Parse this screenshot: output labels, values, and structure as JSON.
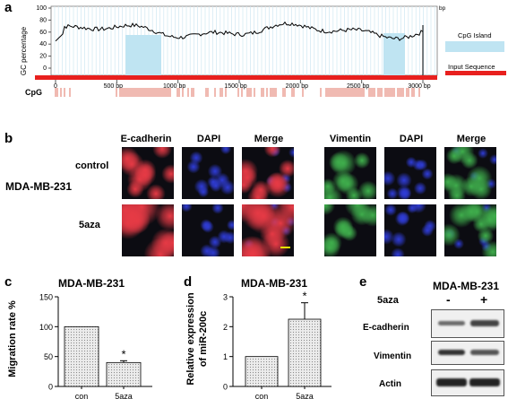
{
  "panels": {
    "a": "a",
    "b": "b",
    "c": "c",
    "d": "d",
    "e": "e"
  },
  "panel_a": {
    "ylabel": "GC percentage",
    "yticks": [
      "0",
      "20",
      "40",
      "60",
      "80",
      "100"
    ],
    "xticks": [
      "0",
      "500 bp",
      "1000 bp",
      "1500 bp",
      "2000 bp",
      "2500 bp",
      "3000 bp"
    ],
    "ytick_suffix": "bp",
    "cpg_label": "CpG",
    "legend_island": "CpG Island",
    "legend_input": "Input Sequence",
    "colors": {
      "island": "#bfe4f2",
      "input": "#e8201e",
      "cpg_tick": "#d9533f",
      "gc_line": "#000000"
    }
  },
  "panel_b": {
    "cell_line": "MDA-MB-231",
    "rows": [
      "control",
      "5aza"
    ],
    "columns_left": [
      "E-cadherin",
      "DAPI",
      "Merge"
    ],
    "columns_right": [
      "Vimentin",
      "DAPI",
      "Merge"
    ],
    "colors": {
      "red": "#e63a45",
      "blue": "#2f3cd6",
      "green": "#3fae4c"
    }
  },
  "chart_data": [
    {
      "type": "bar",
      "title": "MDA-MB-231",
      "categories": [
        "con",
        "5aza"
      ],
      "values": [
        100,
        40
      ],
      "errors": [
        0,
        3
      ],
      "significance": [
        "",
        "*"
      ],
      "ylabel": "Migration rate %",
      "yticks": [
        "0",
        "50",
        "100",
        "150"
      ],
      "ylim": [
        0,
        150
      ]
    },
    {
      "type": "bar",
      "title": "MDA-MB-231",
      "categories": [
        "con",
        "5aza"
      ],
      "values": [
        1.0,
        2.25
      ],
      "errors": [
        0,
        0.55
      ],
      "significance": [
        "",
        "*"
      ],
      "ylabel_line1": "Relative expression",
      "ylabel_line2": "of miR-200c",
      "yticks": [
        "0",
        "1",
        "2",
        "3"
      ],
      "ylim": [
        0,
        3
      ]
    }
  ],
  "panel_e": {
    "title": "MDA-MB-231",
    "treatment": "5aza",
    "minus": "-",
    "plus": "+",
    "blots": [
      "E-cadherin",
      "Vimentin",
      "Actin"
    ]
  }
}
